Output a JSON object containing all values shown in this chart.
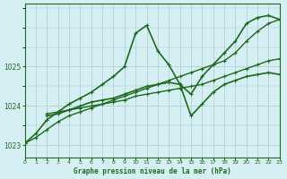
{
  "title": "Graphe pression niveau de la mer (hPa)",
  "background_color": "#d6eff5",
  "grid_color": "#aacccc",
  "line_color": "#1a6b1a",
  "marker_color": "#1a6b1a",
  "xlim": [
    0,
    23
  ],
  "ylim": [
    1022.7,
    1026.6
  ],
  "yticks": [
    1023,
    1024,
    1025
  ],
  "xticks": [
    0,
    1,
    2,
    3,
    4,
    5,
    6,
    7,
    8,
    9,
    10,
    11,
    12,
    13,
    14,
    15,
    16,
    17,
    18,
    19,
    20,
    21,
    22,
    23
  ],
  "series": [
    {
      "x": [
        0,
        1,
        2,
        3,
        4,
        5,
        6,
        7,
        8,
        9,
        10,
        11,
        12,
        13,
        14,
        15,
        16,
        17,
        18,
        19,
        20,
        21,
        22,
        23
      ],
      "y": [
        1023.05,
        1023.3,
        1023.65,
        1023.85,
        1024.05,
        1024.2,
        1024.35,
        1024.55,
        1024.75,
        1025.0,
        1025.85,
        1026.05,
        1025.4,
        1025.05,
        1024.55,
        1024.3,
        1024.75,
        1025.05,
        1025.35,
        1025.65,
        1026.1,
        1026.25,
        1026.3,
        1026.2
      ],
      "lw": 1.2,
      "marker": "+"
    },
    {
      "x": [
        0,
        1,
        2,
        3,
        4,
        5,
        6,
        7,
        8,
        9,
        10,
        11,
        12,
        13,
        14,
        15,
        16,
        17,
        18,
        19,
        20,
        21,
        22,
        23
      ],
      "y": [
        1023.05,
        1023.2,
        1023.4,
        1023.6,
        1023.75,
        1023.85,
        1023.95,
        1024.05,
        1024.15,
        1024.25,
        1024.35,
        1024.45,
        1024.55,
        1024.65,
        1024.75,
        1024.85,
        1024.95,
        1025.05,
        1025.15,
        1025.35,
        1025.65,
        1025.9,
        1026.1,
        1026.2
      ],
      "lw": 1.0,
      "marker": "+"
    },
    {
      "x": [
        2,
        3,
        4,
        5,
        6,
        7,
        8,
        9,
        10,
        11,
        12,
        13,
        14,
        15,
        16,
        17,
        18,
        19,
        20,
        21,
        22,
        23
      ],
      "y": [
        1023.8,
        1023.85,
        1023.9,
        1023.95,
        1024.0,
        1024.05,
        1024.1,
        1024.15,
        1024.25,
        1024.3,
        1024.35,
        1024.4,
        1024.45,
        1024.5,
        1024.55,
        1024.65,
        1024.75,
        1024.85,
        1024.95,
        1025.05,
        1025.15,
        1025.2
      ],
      "lw": 1.0,
      "marker": "+"
    },
    {
      "x": [
        2,
        3,
        4,
        5,
        6,
        7,
        8,
        9,
        10,
        11,
        12,
        13,
        14,
        15,
        16,
        17,
        18,
        19,
        20,
        21,
        22,
        23
      ],
      "y": [
        1023.75,
        1023.8,
        1023.9,
        1024.0,
        1024.1,
        1024.15,
        1024.2,
        1024.3,
        1024.4,
        1024.5,
        1024.55,
        1024.6,
        1024.55,
        1023.75,
        1024.05,
        1024.35,
        1024.55,
        1024.65,
        1024.75,
        1024.8,
        1024.85,
        1024.8
      ],
      "lw": 1.2,
      "marker": "+"
    }
  ]
}
